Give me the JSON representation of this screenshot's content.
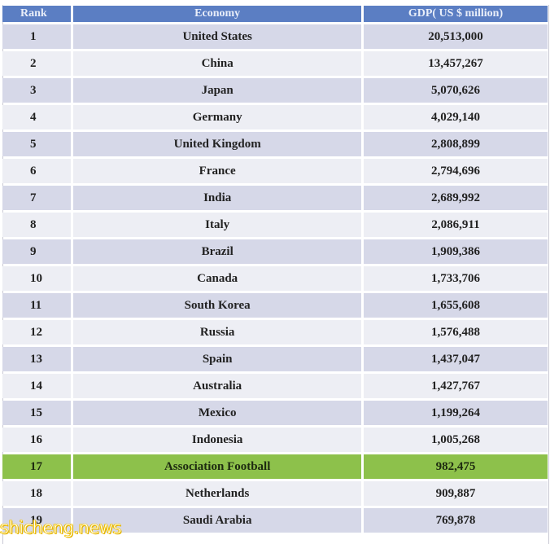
{
  "chart_data": {
    "type": "table",
    "columns": [
      "Rank",
      "Economy",
      "GDP( US $ million)"
    ],
    "rows": [
      {
        "rank": "1",
        "economy": "United States",
        "gdp": "20,513,000"
      },
      {
        "rank": "2",
        "economy": "China",
        "gdp": "13,457,267"
      },
      {
        "rank": "3",
        "economy": "Japan",
        "gdp": "5,070,626"
      },
      {
        "rank": "4",
        "economy": "Germany",
        "gdp": "4,029,140"
      },
      {
        "rank": "5",
        "economy": "United Kingdom",
        "gdp": "2,808,899"
      },
      {
        "rank": "6",
        "economy": "France",
        "gdp": "2,794,696"
      },
      {
        "rank": "7",
        "economy": "India",
        "gdp": "2,689,992"
      },
      {
        "rank": "8",
        "economy": "Italy",
        "gdp": "2,086,911"
      },
      {
        "rank": "9",
        "economy": "Brazil",
        "gdp": "1,909,386"
      },
      {
        "rank": "10",
        "economy": "Canada",
        "gdp": "1,733,706"
      },
      {
        "rank": "11",
        "economy": "South Korea",
        "gdp": "1,655,608"
      },
      {
        "rank": "12",
        "economy": "Russia",
        "gdp": "1,576,488"
      },
      {
        "rank": "13",
        "economy": "Spain",
        "gdp": "1,437,047"
      },
      {
        "rank": "14",
        "economy": "Australia",
        "gdp": "1,427,767"
      },
      {
        "rank": "15",
        "economy": "Mexico",
        "gdp": "1,199,264"
      },
      {
        "rank": "16",
        "economy": "Indonesia",
        "gdp": "1,005,268"
      },
      {
        "rank": "17",
        "economy": "Association Football",
        "gdp": "982,475",
        "highlight": true
      },
      {
        "rank": "18",
        "economy": "Netherlands",
        "gdp": "909,887"
      },
      {
        "rank": "19",
        "economy": "Saudi Arabia",
        "gdp": "769,878"
      }
    ],
    "colors": {
      "header": "#5b7ec3",
      "row_odd": "#d6d8e8",
      "row_even": "#edeef4",
      "highlight": "#8dc14b"
    }
  },
  "watermark": {
    "text": "shicheng.news"
  }
}
